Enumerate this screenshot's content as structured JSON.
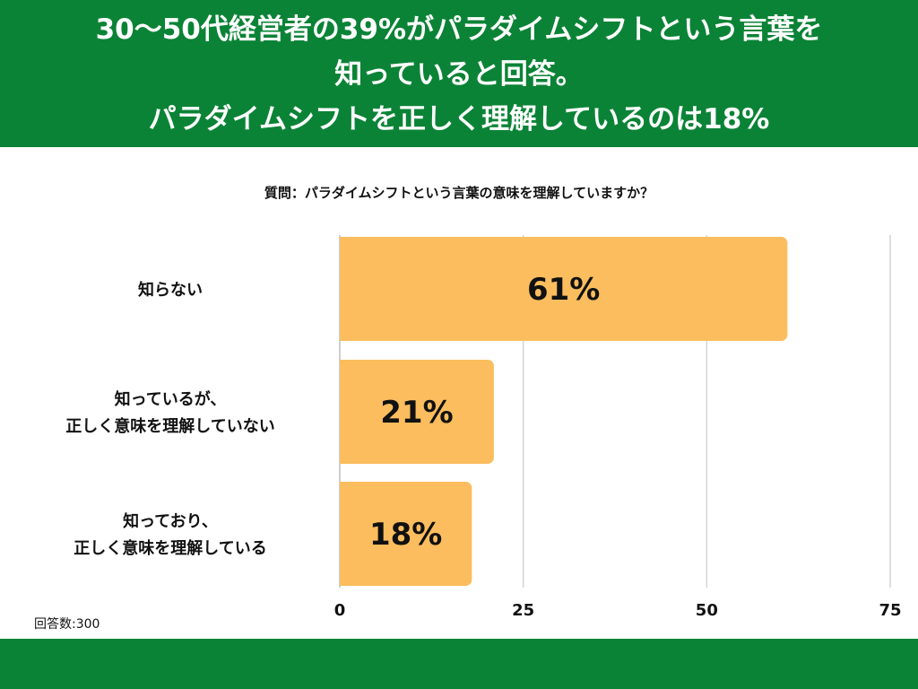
{
  "header": {
    "title_lines": [
      "30〜50代経営者の39%がパラダイムシフトという言葉を",
      "知っていると回答。",
      "パラダイムシフトを正しく理解しているのは18%"
    ]
  },
  "colors": {
    "header_bg": "#0b8336",
    "bar": "#fbbd5e",
    "grid": "#d4d4d4"
  },
  "chart_data": {
    "type": "bar",
    "orientation": "horizontal",
    "title": "質問：パラダイムシフトという言葉の意味を理解していますか？",
    "categories": [
      [
        "知らない"
      ],
      [
        "知っているが、",
        "正しく意味を理解していない"
      ],
      [
        "知っており、",
        "正しく意味を理解している"
      ]
    ],
    "values": [
      61,
      21,
      18
    ],
    "data_labels": [
      "61%",
      "21%",
      "18%"
    ],
    "xlim": [
      0,
      75
    ],
    "xticks": [
      0,
      25,
      50,
      75
    ],
    "grid": true,
    "legend": "none"
  },
  "footnote": "回答数:300"
}
